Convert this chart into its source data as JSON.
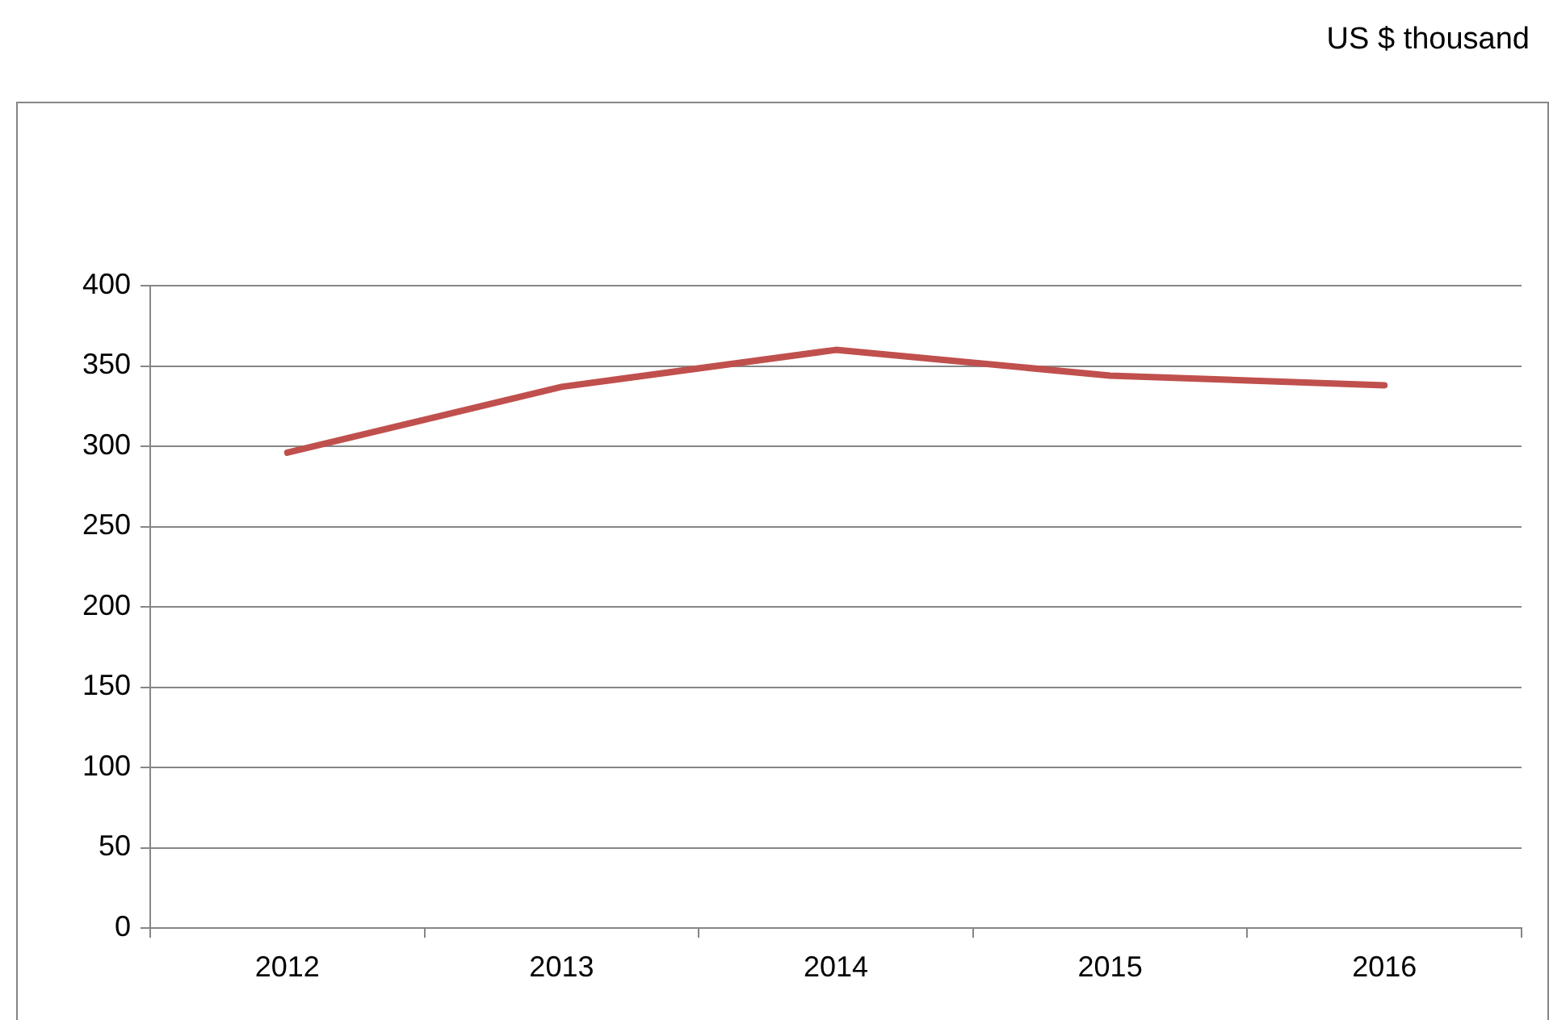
{
  "chart_data": {
    "type": "line",
    "annotations": [
      "US $ thousand"
    ],
    "categories": [
      "2012",
      "2013",
      "2014",
      "2015",
      "2016"
    ],
    "series": [
      {
        "color": "#c0504d",
        "values": [
          296,
          337,
          360,
          344,
          338
        ]
      }
    ],
    "ylim": [
      0,
      400
    ],
    "yticks": [
      0,
      50,
      100,
      150,
      200,
      250,
      300,
      350,
      400
    ],
    "grid": "y",
    "legend": false,
    "marker": "none",
    "line_style": "solid"
  }
}
